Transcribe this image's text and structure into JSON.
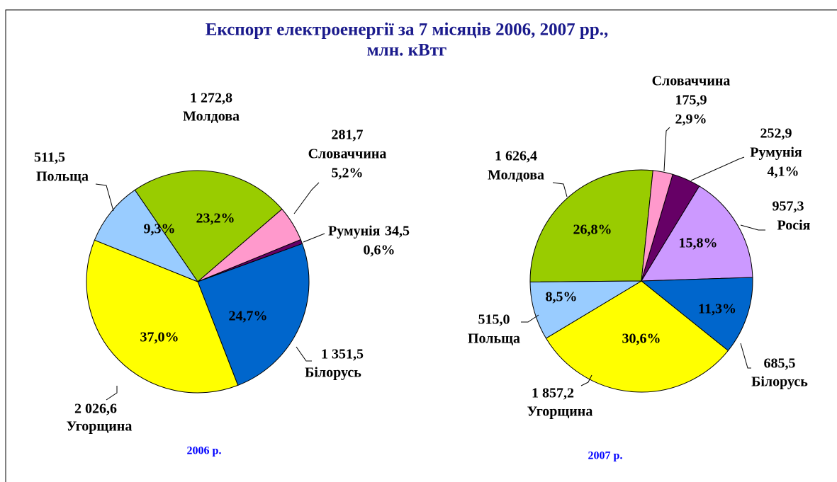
{
  "title_lines": [
    "Експорт електроенергії за 7 місяців 2006, 2007 рр.,",
    "млн. кВтг"
  ],
  "chart_data": [
    {
      "type": "pie",
      "title": "2006 р.",
      "categories": [
        "Молдова",
        "Словаччина",
        "Румунія",
        "Білорусь",
        "Угорщина",
        "Польща"
      ],
      "values": [
        1272.8,
        281.7,
        34.5,
        1351.5,
        2026.6,
        511.5
      ],
      "value_labels": [
        "1 272,8",
        "281,7",
        "34,5",
        "1 351,5",
        "2 026,6",
        "511,5"
      ],
      "percent_labels": [
        "23,2%",
        "5,2%",
        "0,6%",
        "24,7%",
        "37,0%",
        "9,3%"
      ],
      "colors": [
        "#99cc00",
        "#ff99cc",
        "#660066",
        "#0066cc",
        "#ffff00",
        "#99ccff"
      ]
    },
    {
      "type": "pie",
      "title": "2007 р.",
      "categories": [
        "Молдова",
        "Словаччина",
        "Румунія",
        "Росія",
        "Білорусь",
        "Угорщина",
        "Польща"
      ],
      "values": [
        1626.4,
        175.9,
        252.9,
        957.3,
        685.5,
        1857.2,
        515.0
      ],
      "value_labels": [
        "1 626,4",
        "175,9",
        "252,9",
        "957,3",
        "685,5",
        "1 857,2",
        "515,0"
      ],
      "percent_labels": [
        "26,8%",
        "2,9%",
        "4,1%",
        "15,8%",
        "11,3%",
        "30,6%",
        "8,5%"
      ],
      "colors": [
        "#99cc00",
        "#ff99cc",
        "#660066",
        "#cc99ff",
        "#0066cc",
        "#ffff00",
        "#99ccff"
      ]
    }
  ]
}
